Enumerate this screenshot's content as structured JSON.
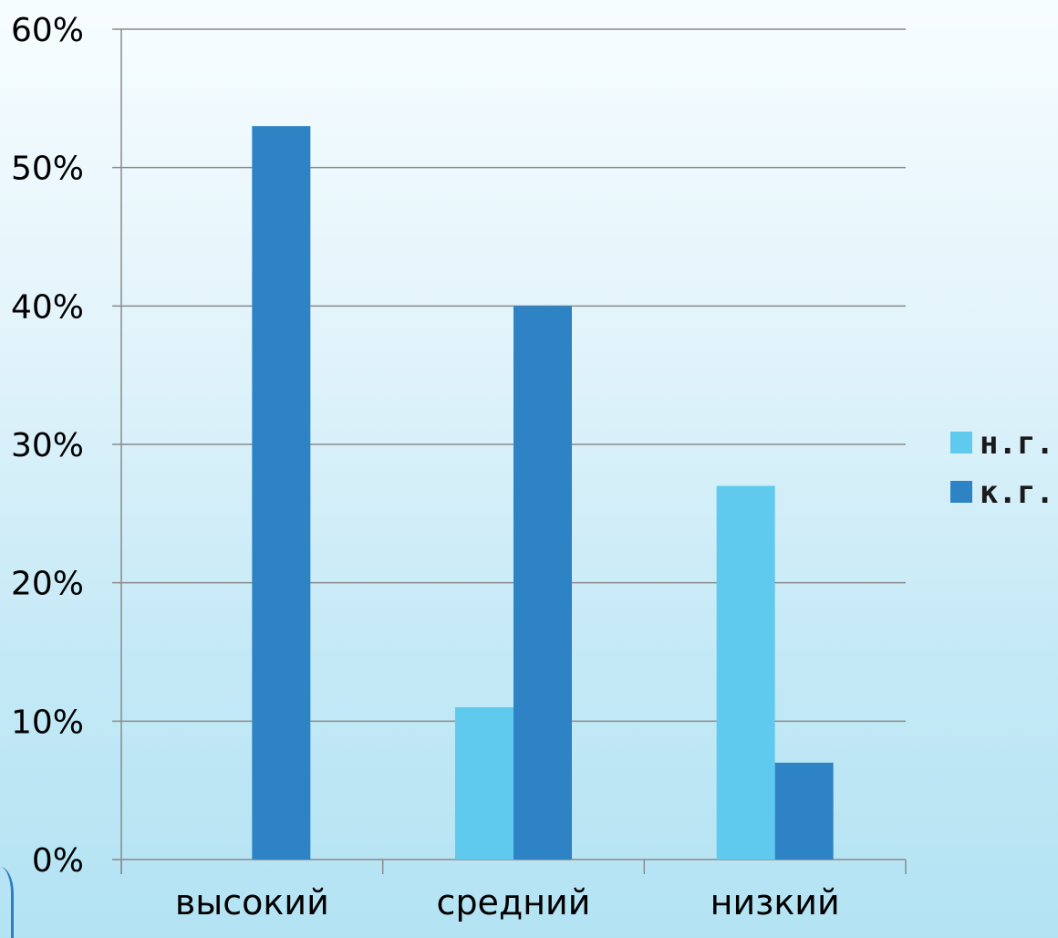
{
  "chart_data": {
    "type": "bar",
    "categories": [
      "высокий",
      "средний",
      "низкий"
    ],
    "series": [
      {
        "name": "н.г.",
        "values": [
          0,
          11,
          27
        ],
        "color": "#5fcaee"
      },
      {
        "name": "к.г.",
        "values": [
          53,
          40,
          7
        ],
        "color": "#2d83c4"
      }
    ],
    "title": "",
    "xlabel": "",
    "ylabel": "",
    "ylim": [
      0,
      60
    ],
    "yticks": [
      "0%",
      "10%",
      "20%",
      "30%",
      "40%",
      "50%",
      "60%"
    ],
    "grid": true,
    "legend": "right"
  }
}
